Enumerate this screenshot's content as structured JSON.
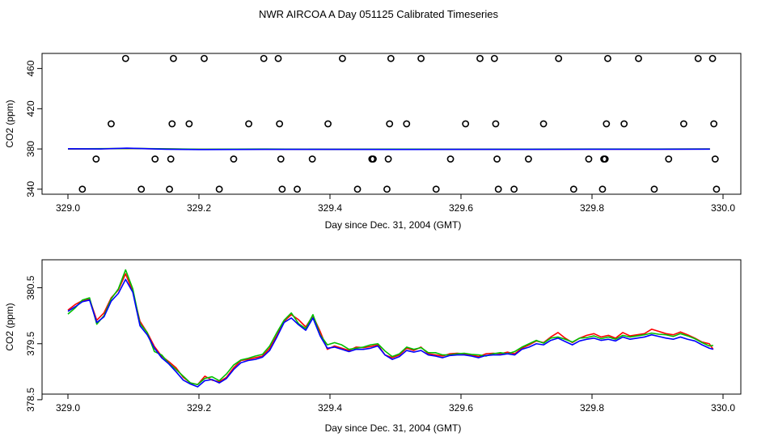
{
  "title": "NWR AIRCOA A  Day 051125  Calibrated Timeseries",
  "colors": {
    "red": "#ff0000",
    "green": "#00c000",
    "blue": "#0000ff",
    "black": "#000000"
  },
  "chart_data": [
    {
      "id": "top",
      "type": "scatter",
      "xlabel": "Day since Dec. 31, 2004 (GMT)",
      "ylabel": "CO2 (ppm)",
      "xlim": [
        329.0,
        330.0
      ],
      "ylim": [
        335,
        475
      ],
      "xticks": [
        329.0,
        329.2,
        329.4,
        329.6,
        329.8,
        330.0
      ],
      "xtick_labels": [
        "329.0",
        "329.2",
        "329.4",
        "329.6",
        "329.8",
        "330.0"
      ],
      "yticks": [
        340,
        380,
        420,
        460
      ],
      "ytick_labels": [
        "340",
        "380",
        "420",
        "460"
      ],
      "points": [
        {
          "x": 329.022,
          "y": 340
        },
        {
          "x": 329.043,
          "y": 370
        },
        {
          "x": 329.066,
          "y": 405
        },
        {
          "x": 329.088,
          "y": 470
        },
        {
          "x": 329.112,
          "y": 340
        },
        {
          "x": 329.133,
          "y": 370
        },
        {
          "x": 329.155,
          "y": 340
        },
        {
          "x": 329.157,
          "y": 370
        },
        {
          "x": 329.159,
          "y": 405
        },
        {
          "x": 329.161,
          "y": 470
        },
        {
          "x": 329.185,
          "y": 405
        },
        {
          "x": 329.208,
          "y": 470
        },
        {
          "x": 329.231,
          "y": 340
        },
        {
          "x": 329.253,
          "y": 370
        },
        {
          "x": 329.276,
          "y": 405
        },
        {
          "x": 329.299,
          "y": 470
        },
        {
          "x": 329.321,
          "y": 470
        },
        {
          "x": 329.323,
          "y": 405
        },
        {
          "x": 329.325,
          "y": 370
        },
        {
          "x": 329.327,
          "y": 340
        },
        {
          "x": 329.35,
          "y": 340
        },
        {
          "x": 329.373,
          "y": 370
        },
        {
          "x": 329.397,
          "y": 405
        },
        {
          "x": 329.419,
          "y": 470
        },
        {
          "x": 329.442,
          "y": 340
        },
        {
          "x": 329.464,
          "y": 370
        },
        {
          "x": 329.466,
          "y": 370
        },
        {
          "x": 329.487,
          "y": 340
        },
        {
          "x": 329.489,
          "y": 370
        },
        {
          "x": 329.491,
          "y": 405
        },
        {
          "x": 329.493,
          "y": 470
        },
        {
          "x": 329.517,
          "y": 405
        },
        {
          "x": 329.539,
          "y": 470
        },
        {
          "x": 329.562,
          "y": 340
        },
        {
          "x": 329.584,
          "y": 370
        },
        {
          "x": 329.607,
          "y": 405
        },
        {
          "x": 329.629,
          "y": 470
        },
        {
          "x": 329.651,
          "y": 470
        },
        {
          "x": 329.653,
          "y": 405
        },
        {
          "x": 329.655,
          "y": 370
        },
        {
          "x": 329.657,
          "y": 340
        },
        {
          "x": 329.681,
          "y": 340
        },
        {
          "x": 329.703,
          "y": 370
        },
        {
          "x": 329.726,
          "y": 405
        },
        {
          "x": 329.749,
          "y": 470
        },
        {
          "x": 329.772,
          "y": 340
        },
        {
          "x": 329.795,
          "y": 370
        },
        {
          "x": 329.816,
          "y": 340
        },
        {
          "x": 329.818,
          "y": 370
        },
        {
          "x": 329.82,
          "y": 370
        },
        {
          "x": 329.822,
          "y": 405
        },
        {
          "x": 329.824,
          "y": 470
        },
        {
          "x": 329.849,
          "y": 405
        },
        {
          "x": 329.871,
          "y": 470
        },
        {
          "x": 329.895,
          "y": 340
        },
        {
          "x": 329.917,
          "y": 370
        },
        {
          "x": 329.94,
          "y": 405
        },
        {
          "x": 329.962,
          "y": 470
        },
        {
          "x": 329.984,
          "y": 470
        },
        {
          "x": 329.986,
          "y": 405
        },
        {
          "x": 329.988,
          "y": 370
        },
        {
          "x": 329.99,
          "y": 340
        }
      ],
      "series": [
        {
          "name": "red",
          "color": "#ff0000",
          "x": [
            329.0,
            329.1,
            329.2,
            329.3,
            329.4,
            329.5,
            329.6,
            329.7,
            329.8,
            329.9,
            329.98
          ],
          "values": [
            380.0,
            380.4,
            379.6,
            379.8,
            379.6,
            379.7,
            379.6,
            379.7,
            379.8,
            379.8,
            379.9
          ]
        },
        {
          "name": "green",
          "color": "#00c000",
          "x": [
            329.0,
            329.1,
            329.2,
            329.3,
            329.4,
            329.5,
            329.6,
            329.7,
            329.8,
            329.9,
            329.98
          ],
          "values": [
            380.1,
            380.5,
            379.7,
            379.9,
            379.7,
            379.8,
            379.7,
            379.8,
            379.9,
            379.9,
            380.0
          ]
        },
        {
          "name": "blue",
          "color": "#0000ff",
          "x": [
            329.0,
            329.05,
            329.09,
            329.15,
            329.2,
            329.3,
            329.4,
            329.5,
            329.6,
            329.7,
            329.8,
            329.9,
            329.98
          ],
          "values": [
            380.2,
            380.0,
            380.8,
            379.7,
            379.4,
            379.6,
            379.6,
            379.5,
            379.6,
            379.6,
            379.7,
            379.7,
            379.8
          ]
        }
      ]
    },
    {
      "id": "bottom",
      "type": "line",
      "xlabel": "Day since Dec. 31, 2004 (GMT)",
      "ylabel": "CO2 (ppm)",
      "xlim": [
        329.0,
        330.0
      ],
      "ylim": [
        378.6,
        381.0
      ],
      "xticks": [
        329.0,
        329.2,
        329.4,
        329.6,
        329.8,
        330.0
      ],
      "xtick_labels": [
        "329.0",
        "329.2",
        "329.4",
        "329.6",
        "329.8",
        "330.0"
      ],
      "yticks": [
        378.5,
        379.5,
        380.5
      ],
      "ytick_labels": [
        "378.5",
        "379.5",
        "380.5"
      ],
      "x": [
        329.0,
        329.011,
        329.022,
        329.033,
        329.044,
        329.055,
        329.066,
        329.077,
        329.088,
        329.099,
        329.11,
        329.121,
        329.132,
        329.143,
        329.154,
        329.165,
        329.176,
        329.187,
        329.198,
        329.209,
        329.22,
        329.231,
        329.242,
        329.253,
        329.264,
        329.275,
        329.286,
        329.297,
        329.308,
        329.319,
        329.33,
        329.341,
        329.352,
        329.363,
        329.374,
        329.385,
        329.396,
        329.407,
        329.418,
        329.429,
        329.44,
        329.451,
        329.462,
        329.473,
        329.484,
        329.495,
        329.506,
        329.517,
        329.528,
        329.539,
        329.55,
        329.561,
        329.572,
        329.583,
        329.594,
        329.605,
        329.616,
        329.627,
        329.638,
        329.649,
        329.66,
        329.671,
        329.682,
        329.693,
        329.704,
        329.715,
        329.726,
        329.737,
        329.748,
        329.759,
        329.77,
        329.781,
        329.792,
        329.803,
        329.814,
        329.825,
        329.836,
        329.847,
        329.858,
        329.869,
        329.88,
        329.891,
        329.902,
        329.913,
        329.924,
        329.935,
        329.946,
        329.957,
        329.968,
        329.979,
        329.985
      ],
      "series": [
        {
          "name": "red",
          "color": "#ff0000",
          "values": [
            380.1,
            380.2,
            380.27,
            380.3,
            379.92,
            380.05,
            380.32,
            380.46,
            380.75,
            380.43,
            379.9,
            379.7,
            379.45,
            379.28,
            379.18,
            379.07,
            378.9,
            378.8,
            378.77,
            378.92,
            378.85,
            378.82,
            378.9,
            379.07,
            379.2,
            379.22,
            379.25,
            379.28,
            379.42,
            379.65,
            379.9,
            380.02,
            379.93,
            379.8,
            380.0,
            379.72,
            379.4,
            379.46,
            379.42,
            379.38,
            379.44,
            379.43,
            379.45,
            379.48,
            379.3,
            379.25,
            379.3,
            379.42,
            379.38,
            379.44,
            379.32,
            379.3,
            379.28,
            379.32,
            379.33,
            379.32,
            379.3,
            379.27,
            379.32,
            379.33,
            379.32,
            379.35,
            379.32,
            379.42,
            379.48,
            379.55,
            379.52,
            379.62,
            379.7,
            379.6,
            379.52,
            379.6,
            379.65,
            379.68,
            379.62,
            379.65,
            379.6,
            379.7,
            379.64,
            379.66,
            379.68,
            379.76,
            379.72,
            379.68,
            379.66,
            379.71,
            379.66,
            379.6,
            379.53,
            379.5,
            379.4
          ]
        },
        {
          "name": "green",
          "color": "#00c000",
          "values": [
            380.03,
            380.14,
            380.28,
            380.32,
            379.85,
            380.0,
            380.3,
            380.48,
            380.82,
            380.48,
            379.86,
            379.7,
            379.36,
            379.3,
            379.15,
            379.04,
            378.92,
            378.8,
            378.77,
            378.88,
            378.91,
            378.84,
            378.96,
            379.12,
            379.21,
            379.24,
            379.28,
            379.31,
            379.46,
            379.7,
            379.92,
            380.05,
            379.86,
            379.77,
            380.02,
            379.66,
            379.48,
            379.52,
            379.48,
            379.4,
            379.42,
            379.44,
            379.48,
            379.5,
            379.37,
            379.27,
            379.32,
            379.44,
            379.4,
            379.43,
            379.34,
            379.34,
            379.3,
            379.3,
            379.32,
            379.33,
            379.31,
            379.3,
            379.28,
            379.32,
            379.34,
            379.32,
            379.36,
            379.44,
            379.5,
            379.56,
            379.51,
            379.6,
            379.62,
            379.58,
            379.53,
            379.6,
            379.61,
            379.64,
            379.59,
            379.62,
            379.58,
            379.65,
            379.62,
            379.64,
            379.66,
            379.69,
            379.67,
            379.66,
            379.63,
            379.68,
            379.64,
            379.59,
            379.52,
            379.46,
            379.47
          ]
        },
        {
          "name": "blue",
          "color": "#0000ff",
          "values": [
            380.08,
            380.16,
            380.25,
            380.28,
            379.88,
            379.98,
            380.26,
            380.4,
            380.65,
            380.42,
            379.82,
            379.66,
            379.42,
            379.25,
            379.14,
            379.0,
            378.85,
            378.78,
            378.73,
            378.84,
            378.86,
            378.8,
            378.88,
            379.04,
            379.16,
            379.2,
            379.22,
            379.26,
            379.38,
            379.62,
            379.88,
            379.96,
            379.84,
            379.74,
            379.96,
            379.64,
            379.42,
            379.44,
            379.4,
            379.36,
            379.4,
            379.4,
            379.42,
            379.46,
            379.3,
            379.22,
            379.27,
            379.38,
            379.35,
            379.38,
            379.3,
            379.28,
            379.25,
            379.29,
            379.3,
            379.3,
            379.28,
            379.25,
            379.29,
            379.3,
            379.3,
            379.32,
            379.3,
            379.4,
            379.44,
            379.5,
            379.48,
            379.56,
            379.6,
            379.54,
            379.48,
            379.55,
            379.58,
            379.6,
            379.56,
            379.58,
            379.55,
            379.62,
            379.58,
            379.6,
            379.62,
            379.66,
            379.63,
            379.6,
            379.58,
            379.62,
            379.58,
            379.55,
            379.48,
            379.42,
            379.4
          ]
        }
      ]
    }
  ]
}
